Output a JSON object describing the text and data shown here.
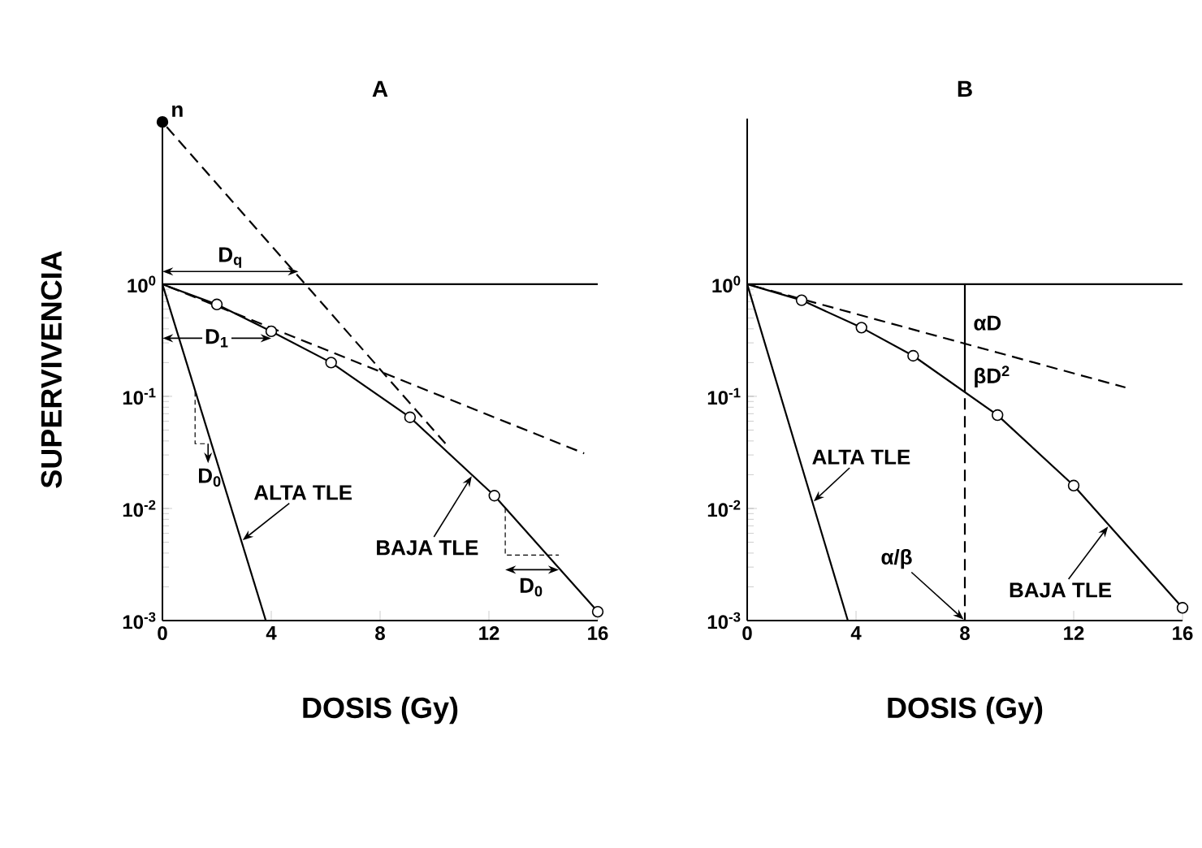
{
  "chart_data": [
    {
      "type": "line",
      "title": "A",
      "xlabel": "DOSIS (Gy)",
      "ylabel": "SUPERVIVENCIA",
      "log": "y",
      "xlim": [
        0,
        16
      ],
      "ylim": [
        0.001,
        30
      ],
      "xticks": [
        0,
        4,
        8,
        12,
        16
      ],
      "yticks": [
        {
          "value": 0.001,
          "label": "10$^{-3}$"
        },
        {
          "value": 0.01,
          "label": "10$^{-2}$"
        },
        {
          "value": 0.1,
          "label": "10$^{-1}$"
        },
        {
          "value": 1,
          "label": "10$^{0}$"
        }
      ],
      "ref_lines": [
        {
          "axis": "y",
          "value": 1,
          "color": "#000000"
        }
      ],
      "series": [
        {
          "type": "line",
          "x": [
            0,
            2,
            4,
            6.2,
            9.1,
            12.2,
            16
          ],
          "values": [
            1,
            0.66,
            0.38,
            0.2,
            0.065,
            0.013,
            0.0012
          ],
          "color": "#000000",
          "marker": "none",
          "line_style": "solid"
        },
        {
          "type": "scatter",
          "x": [
            2,
            4,
            6.2,
            9.1,
            12.2,
            16
          ],
          "values": [
            0.66,
            0.38,
            0.2,
            0.065,
            0.013,
            0.0012
          ],
          "color": "#ffffff",
          "marker": "circle"
        },
        {
          "type": "line",
          "x": [
            0,
            3.8
          ],
          "values": [
            1,
            0.001
          ],
          "color": "#000000",
          "marker": "none",
          "line_style": "solid"
        },
        {
          "type": "line",
          "x": [
            0,
            10.4
          ],
          "values": [
            28,
            0.038
          ],
          "color": "#000000",
          "marker": "none",
          "line_style": "dashed"
        },
        {
          "type": "line",
          "x": [
            0,
            15.5
          ],
          "values": [
            1,
            0.031
          ],
          "color": "#000000",
          "marker": "none",
          "line_style": "dashed"
        },
        {
          "type": "scatter",
          "x": [
            0
          ],
          "values": [
            28
          ],
          "color": "#000000",
          "marker": "circle"
        }
      ],
      "annotations": [
        {
          "text": "n",
          "x": 0,
          "y": 28
        },
        {
          "text": "D$_{q}$",
          "x": 5,
          "y": 1.3
        },
        {
          "text": "D$_{1}$",
          "x": 4,
          "y": 0.33
        },
        {
          "text": "D$_{0}$",
          "x": 1.2,
          "y": 0.11
        },
        {
          "text": "ALTA TLE",
          "x": 2.9,
          "y": 0.0051
        },
        {
          "text": "BAJA TLE",
          "x": 11.4,
          "y": 0.02
        },
        {
          "text": "D$_{0}$",
          "x": 12.6,
          "y": 0.0101
        }
      ]
    },
    {
      "type": "line",
      "title": "B",
      "xlabel": "DOSIS (Gy)",
      "log": "y",
      "xlim": [
        0,
        16
      ],
      "ylim": [
        0.001,
        30
      ],
      "xticks": [
        0,
        4,
        8,
        12,
        16
      ],
      "yticks": [
        {
          "value": 0.001,
          "label": "10$^{-3}$"
        },
        {
          "value": 0.01,
          "label": "10$^{-2}$"
        },
        {
          "value": 0.1,
          "label": "10$^{-1}$"
        },
        {
          "value": 1,
          "label": "10$^{0}$"
        }
      ],
      "ref_lines": [
        {
          "axis": "y",
          "value": 1,
          "color": "#000000"
        }
      ],
      "series": [
        {
          "type": "line",
          "x": [
            0,
            2,
            4.2,
            6.1,
            9.2,
            12,
            16
          ],
          "values": [
            1,
            0.72,
            0.41,
            0.23,
            0.068,
            0.016,
            0.0013
          ],
          "color": "#000000",
          "marker": "none",
          "line_style": "solid"
        },
        {
          "type": "scatter",
          "x": [
            2,
            4.2,
            6.1,
            9.2,
            12,
            16
          ],
          "values": [
            0.72,
            0.41,
            0.23,
            0.068,
            0.016,
            0.0013
          ],
          "color": "#ffffff",
          "marker": "circle"
        },
        {
          "type": "line",
          "x": [
            0,
            3.7
          ],
          "values": [
            1,
            0.001
          ],
          "color": "#000000",
          "marker": "none",
          "line_style": "solid"
        },
        {
          "type": "line",
          "x": [
            0,
            13.9
          ],
          "values": [
            1,
            0.12
          ],
          "color": "#000000",
          "marker": "none",
          "line_style": "dashed"
        },
        {
          "type": "line",
          "x": [
            8,
            8
          ],
          "values": [
            1,
            0.11
          ],
          "color": "#000000",
          "marker": "none",
          "line_style": "solid"
        },
        {
          "type": "line",
          "x": [
            8,
            8
          ],
          "values": [
            0.11,
            0.001
          ],
          "color": "#000000",
          "marker": "none",
          "line_style": "dashed"
        }
      ],
      "annotations": [
        {
          "text": "αD",
          "x": 8,
          "y": 0.45
        },
        {
          "text": "βD$^{2}$",
          "x": 8,
          "y": 0.15
        },
        {
          "text": "ALTA TLE",
          "x": 2.4,
          "y": 0.0113
        },
        {
          "text": "BAJA TLE",
          "x": 13.3,
          "y": 0.0071
        },
        {
          "text": "α/β",
          "x": 8,
          "y": 0.001
        }
      ]
    }
  ]
}
